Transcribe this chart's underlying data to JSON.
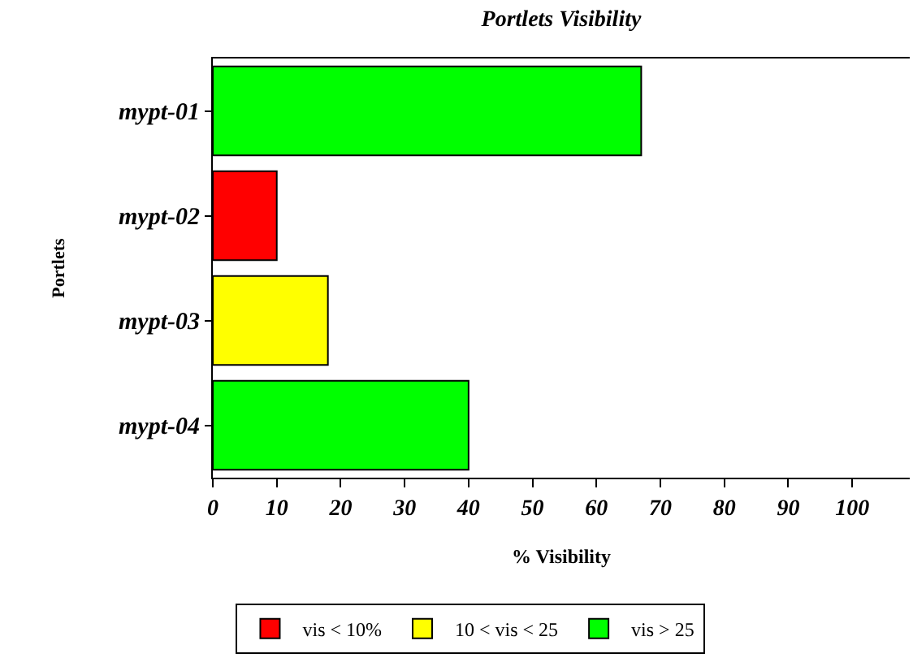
{
  "chart_data": {
    "type": "bar",
    "orientation": "horizontal",
    "title": "Portlets Visibility",
    "xlabel": "% Visibility",
    "ylabel": "Portlets",
    "categories": [
      "mypt-01",
      "mypt-02",
      "mypt-03",
      "mypt-04"
    ],
    "series": [
      {
        "name": "vis < 10%",
        "color": "#ff0000",
        "values": [
          null,
          10,
          null,
          null
        ]
      },
      {
        "name": "10 < vis < 25",
        "color": "#ffff00",
        "values": [
          null,
          null,
          18,
          null
        ]
      },
      {
        "name": "vis > 25",
        "color": "#00ff00",
        "values": [
          67,
          null,
          null,
          40
        ]
      }
    ],
    "xlim": [
      0,
      109
    ],
    "xticks": [
      0,
      10,
      20,
      30,
      40,
      50,
      60,
      70,
      80,
      90,
      100
    ],
    "grid": false,
    "legend": "bottom"
  }
}
